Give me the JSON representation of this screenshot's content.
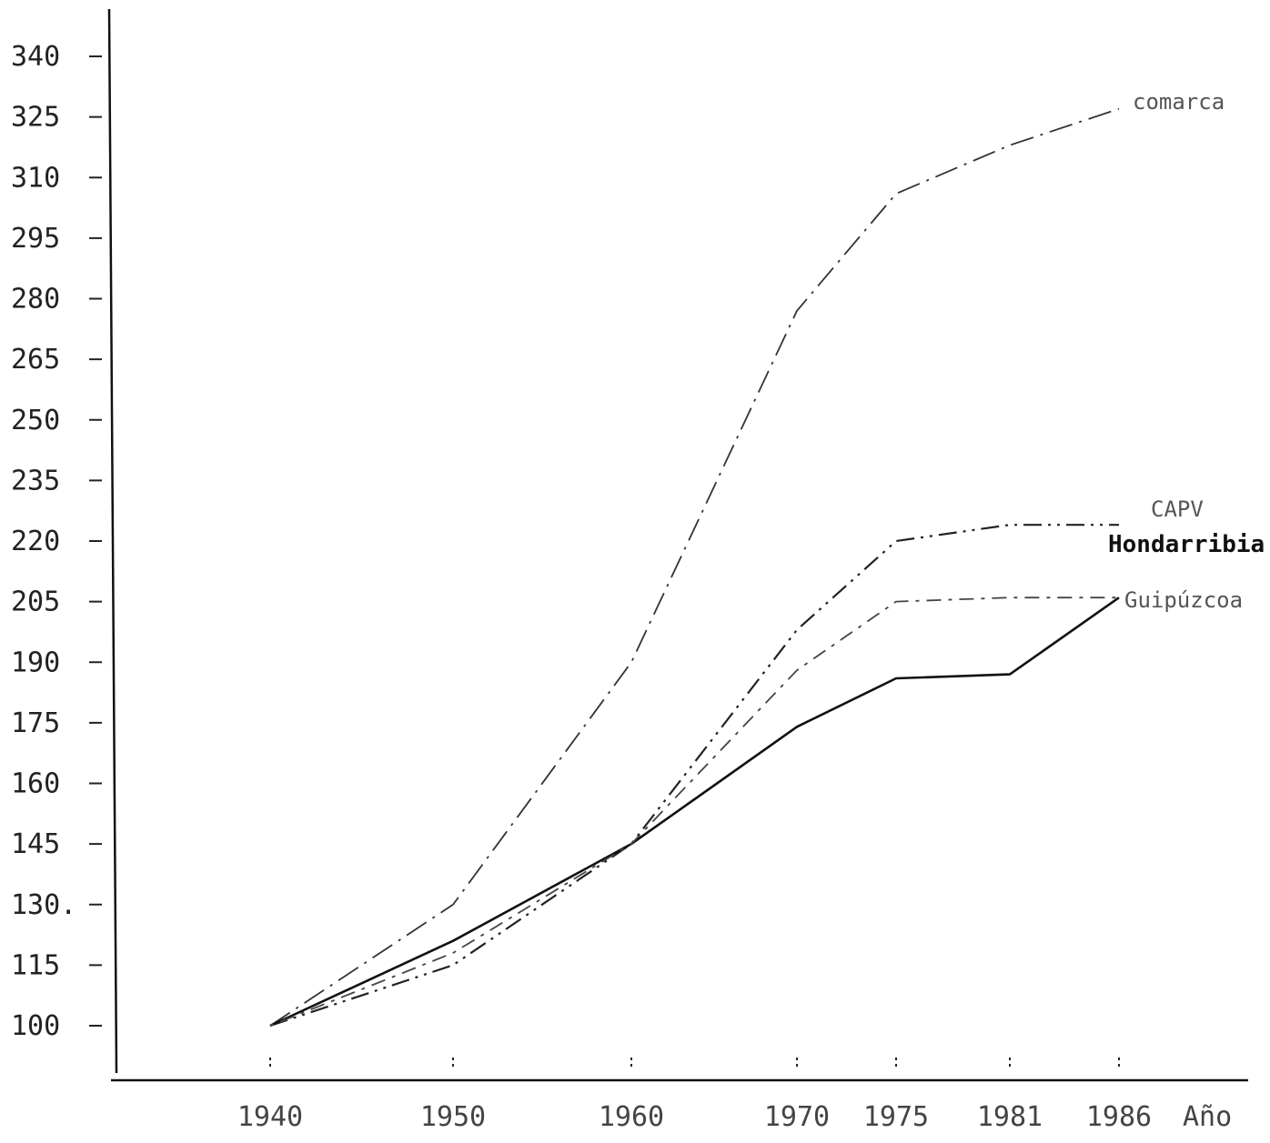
{
  "chart_data": {
    "type": "line",
    "title": "",
    "xlabel": "Año",
    "ylabel": "",
    "x": [
      1940,
      1950,
      1960,
      1970,
      1975,
      1981,
      1986
    ],
    "x_tick_labels": [
      "1940",
      "1950",
      "1960",
      "1970",
      "1975",
      "1981",
      "1986"
    ],
    "y_ticks": [
      100,
      115,
      130,
      145,
      160,
      175,
      190,
      205,
      220,
      235,
      250,
      265,
      280,
      295,
      310,
      325,
      340
    ],
    "y_tick_labels": [
      "100",
      "115",
      "130.",
      "145",
      "160",
      "175",
      "190",
      "205",
      "220",
      "235",
      "250",
      "265",
      "280",
      "295",
      "310",
      "325",
      "340"
    ],
    "ylim": [
      100,
      340
    ],
    "grid": false,
    "series": [
      {
        "name": "comarca",
        "values": [
          100,
          130,
          190,
          277,
          306,
          318,
          327
        ],
        "style": "dash-dot",
        "color": "#333333"
      },
      {
        "name": "CAPV",
        "values": [
          100,
          115,
          145,
          198,
          220,
          224,
          224
        ],
        "style": "dash-dot-dot",
        "color": "#222222"
      },
      {
        "name": "Hondarribia",
        "values": [
          100,
          121,
          145,
          174,
          186,
          187,
          206
        ],
        "style": "solid",
        "color": "#111111"
      },
      {
        "name": "Guipúzcoa",
        "values": [
          100,
          118,
          145,
          188,
          205,
          206,
          206
        ],
        "style": "dotted-dash",
        "color": "#444444"
      }
    ]
  }
}
